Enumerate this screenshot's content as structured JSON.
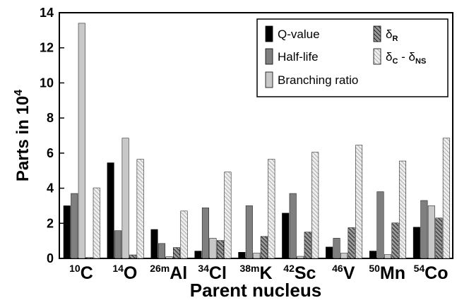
{
  "chart_data": {
    "type": "bar",
    "title": "",
    "xlabel": "Parent nucleus",
    "ylabel": {
      "text": "Parts in 10",
      "sup": "4"
    },
    "ylim": [
      0,
      14
    ],
    "yticks": [
      0,
      2,
      4,
      6,
      8,
      10,
      12,
      14
    ],
    "legend_position": "top-right",
    "grid": false,
    "categories": [
      {
        "sup": "10",
        "base": "C"
      },
      {
        "sup": "14",
        "base": "O"
      },
      {
        "sup": "26m",
        "base": "Al"
      },
      {
        "sup": "34",
        "base": "Cl"
      },
      {
        "sup": "38m",
        "base": "K"
      },
      {
        "sup": "42",
        "base": "Sc"
      },
      {
        "sup": "46",
        "base": "V"
      },
      {
        "sup": "50",
        "base": "Mn"
      },
      {
        "sup": "54",
        "base": "Co"
      }
    ],
    "series": [
      {
        "name": "Q-value",
        "fill": "#000000",
        "values": [
          3.0,
          5.45,
          1.65,
          0.42,
          0.35,
          2.58,
          0.65,
          0.42,
          1.78
        ]
      },
      {
        "name": "Half-life",
        "fill": "#7f7f7f",
        "values": [
          3.7,
          1.58,
          0.85,
          2.88,
          3.0,
          3.7,
          1.15,
          3.8,
          3.3
        ]
      },
      {
        "name": "Branching ratio",
        "fill": "#c8c8c8",
        "values": [
          13.4,
          6.85,
          0.1,
          1.15,
          0.3,
          0.12,
          0.3,
          0.22,
          3.0
        ]
      },
      {
        "name_base": "δ",
        "name_sub": "R",
        "fill": "hatchDark",
        "values": [
          0.05,
          0.2,
          0.62,
          1.02,
          1.25,
          1.5,
          1.75,
          2.02,
          2.3
        ]
      },
      {
        "name_base": "δ",
        "name_sub": "C",
        "name_mid": " - δ",
        "name_sub2": "NS",
        "fill": "hatchLight",
        "values": [
          4.02,
          5.65,
          2.7,
          4.92,
          5.65,
          6.05,
          6.45,
          5.55,
          6.85
        ]
      }
    ]
  }
}
